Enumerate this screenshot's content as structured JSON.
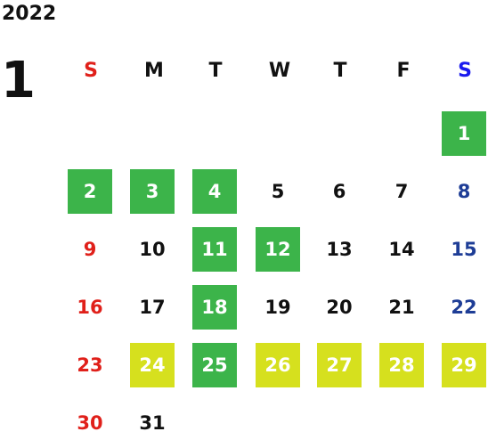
{
  "calendar": {
    "year": "2022",
    "month": "1",
    "weekdays": [
      "S",
      "M",
      "T",
      "W",
      "T",
      "F",
      "S"
    ],
    "days": [
      {
        "label": "1",
        "highlight": "green"
      },
      {
        "label": "2",
        "highlight": "green"
      },
      {
        "label": "3",
        "highlight": "green"
      },
      {
        "label": "4",
        "highlight": "green"
      },
      {
        "label": "5",
        "highlight": "none"
      },
      {
        "label": "6",
        "highlight": "none"
      },
      {
        "label": "7",
        "highlight": "none"
      },
      {
        "label": "8",
        "highlight": "none"
      },
      {
        "label": "9",
        "highlight": "none"
      },
      {
        "label": "10",
        "highlight": "none"
      },
      {
        "label": "11",
        "highlight": "green"
      },
      {
        "label": "12",
        "highlight": "green"
      },
      {
        "label": "13",
        "highlight": "none"
      },
      {
        "label": "14",
        "highlight": "none"
      },
      {
        "label": "15",
        "highlight": "none"
      },
      {
        "label": "16",
        "highlight": "none"
      },
      {
        "label": "17",
        "highlight": "none"
      },
      {
        "label": "18",
        "highlight": "green"
      },
      {
        "label": "19",
        "highlight": "none"
      },
      {
        "label": "20",
        "highlight": "none"
      },
      {
        "label": "21",
        "highlight": "none"
      },
      {
        "label": "22",
        "highlight": "none"
      },
      {
        "label": "23",
        "highlight": "none"
      },
      {
        "label": "24",
        "highlight": "yellow"
      },
      {
        "label": "25",
        "highlight": "green"
      },
      {
        "label": "26",
        "highlight": "yellow"
      },
      {
        "label": "27",
        "highlight": "yellow"
      },
      {
        "label": "28",
        "highlight": "yellow"
      },
      {
        "label": "29",
        "highlight": "yellow"
      },
      {
        "label": "30",
        "highlight": "none"
      },
      {
        "label": "31",
        "highlight": "none"
      }
    ]
  },
  "colors": {
    "green_highlight": "#3cb44a",
    "yellow_highlight": "#d6e01e",
    "sunday": "#e0201a",
    "saturday": "#1e3d96",
    "saturday_header": "#1a1aee",
    "weekday": "#111111"
  }
}
